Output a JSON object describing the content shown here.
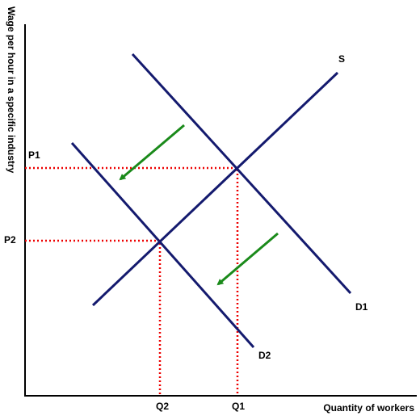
{
  "axes": {
    "x_label": "Quantity of workers",
    "y_label": "Wage per hour in a specific industry"
  },
  "curves": {
    "supply": "S",
    "demand_1": "D1",
    "demand_2": "D2"
  },
  "equilibria": [
    {
      "price": "P1",
      "quantity": "Q1"
    },
    {
      "price": "P2",
      "quantity": "Q2"
    }
  ]
}
